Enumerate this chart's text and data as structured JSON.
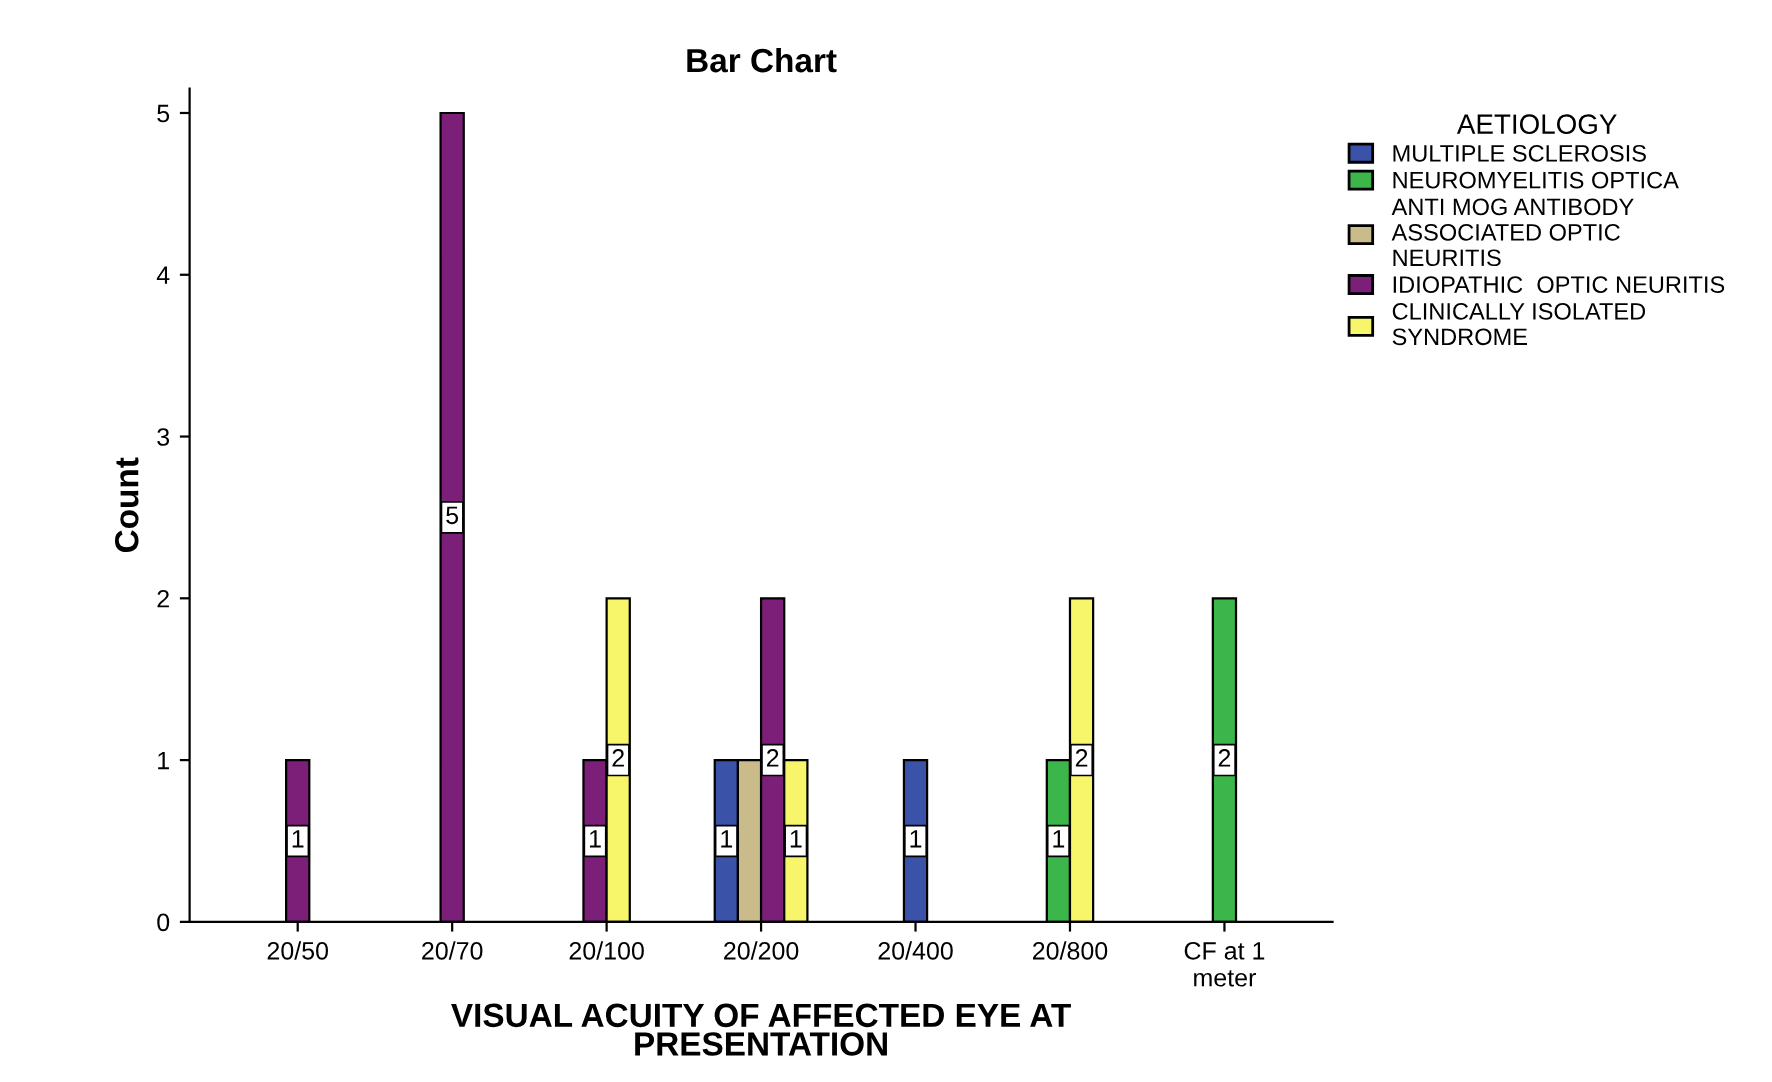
{
  "chart_data": {
    "type": "bar",
    "title": "Bar Chart",
    "xlabel": "VISUAL ACUITY OF AFFECTED EYE AT\nPRESENTATION",
    "ylabel": "Count",
    "legend_title": "AETIOLOGY",
    "legend": "right",
    "categories": [
      "20/50",
      "20/70",
      "20/100",
      "20/200",
      "20/400",
      "20/800",
      "CF at 1\nmeter"
    ],
    "series": [
      {
        "name": "MULTIPLE SCLEROSIS",
        "color": "#3a52a8",
        "values": [
          null,
          null,
          null,
          1,
          1,
          null,
          null
        ],
        "value_labels": [
          null,
          null,
          null,
          "1",
          "1",
          null,
          null
        ]
      },
      {
        "name": "NEUROMYELITIS OPTICA",
        "color": "#3cb54a",
        "values": [
          null,
          null,
          null,
          null,
          null,
          1,
          2
        ],
        "value_labels": [
          null,
          null,
          null,
          null,
          null,
          "1",
          "2"
        ]
      },
      {
        "name": "ANTI MOG ANTIBODY\nASSOCIATED OPTIC\nNEURITIS",
        "color": "#c9bb8a",
        "values": [
          null,
          null,
          null,
          1,
          null,
          null,
          null
        ],
        "value_labels": [
          null,
          null,
          null,
          null,
          null,
          null,
          null
        ]
      },
      {
        "name": "IDIOPATHIC  OPTIC NEURITIS",
        "color": "#7b1f78",
        "values": [
          1,
          5,
          1,
          2,
          null,
          null,
          null
        ],
        "value_labels": [
          "1",
          "5",
          "1",
          "2",
          null,
          null,
          null
        ]
      },
      {
        "name": "CLINICALLY ISOLATED\nSYNDROME",
        "color": "#f7f56a",
        "values": [
          null,
          null,
          2,
          1,
          null,
          2,
          null
        ],
        "value_labels": [
          null,
          null,
          "2",
          "1",
          null,
          "2",
          null
        ]
      }
    ],
    "ylim": [
      0,
      5.15
    ],
    "yticks": [
      0,
      1,
      2,
      3,
      4,
      5
    ],
    "grid": false
  }
}
